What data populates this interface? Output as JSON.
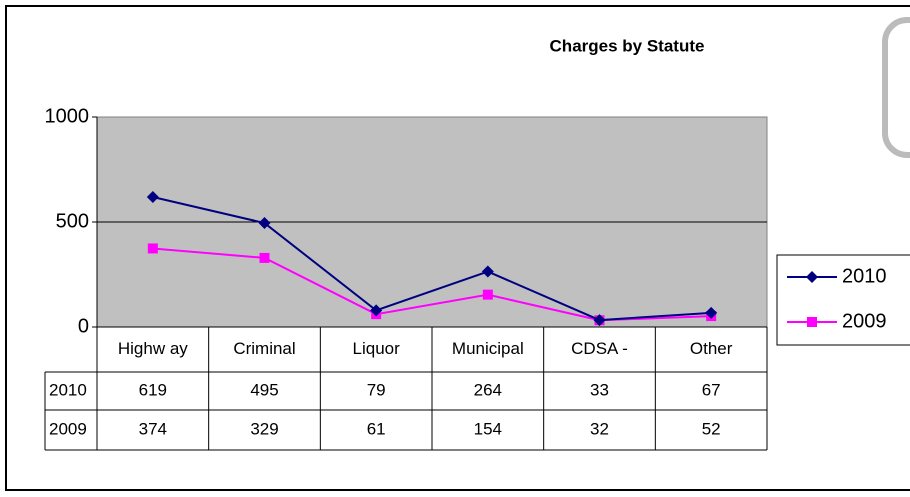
{
  "chart_data": {
    "type": "line",
    "title": "Charges by Statute",
    "categories": [
      "Highw ay",
      "Criminal",
      "Liquor",
      "Municipal",
      "CDSA -",
      "Other"
    ],
    "series": [
      {
        "name": "2010",
        "color": "#000080",
        "marker": "diamond",
        "values": [
          619,
          495,
          79,
          264,
          33,
          67
        ]
      },
      {
        "name": "2009",
        "color": "#ff00ff",
        "marker": "square",
        "values": [
          374,
          329,
          61,
          154,
          32,
          52
        ]
      }
    ],
    "ylim": [
      0,
      1000
    ],
    "yticks": [
      0,
      500,
      1000
    ],
    "grid": true,
    "legend": "right",
    "data_table": true
  }
}
